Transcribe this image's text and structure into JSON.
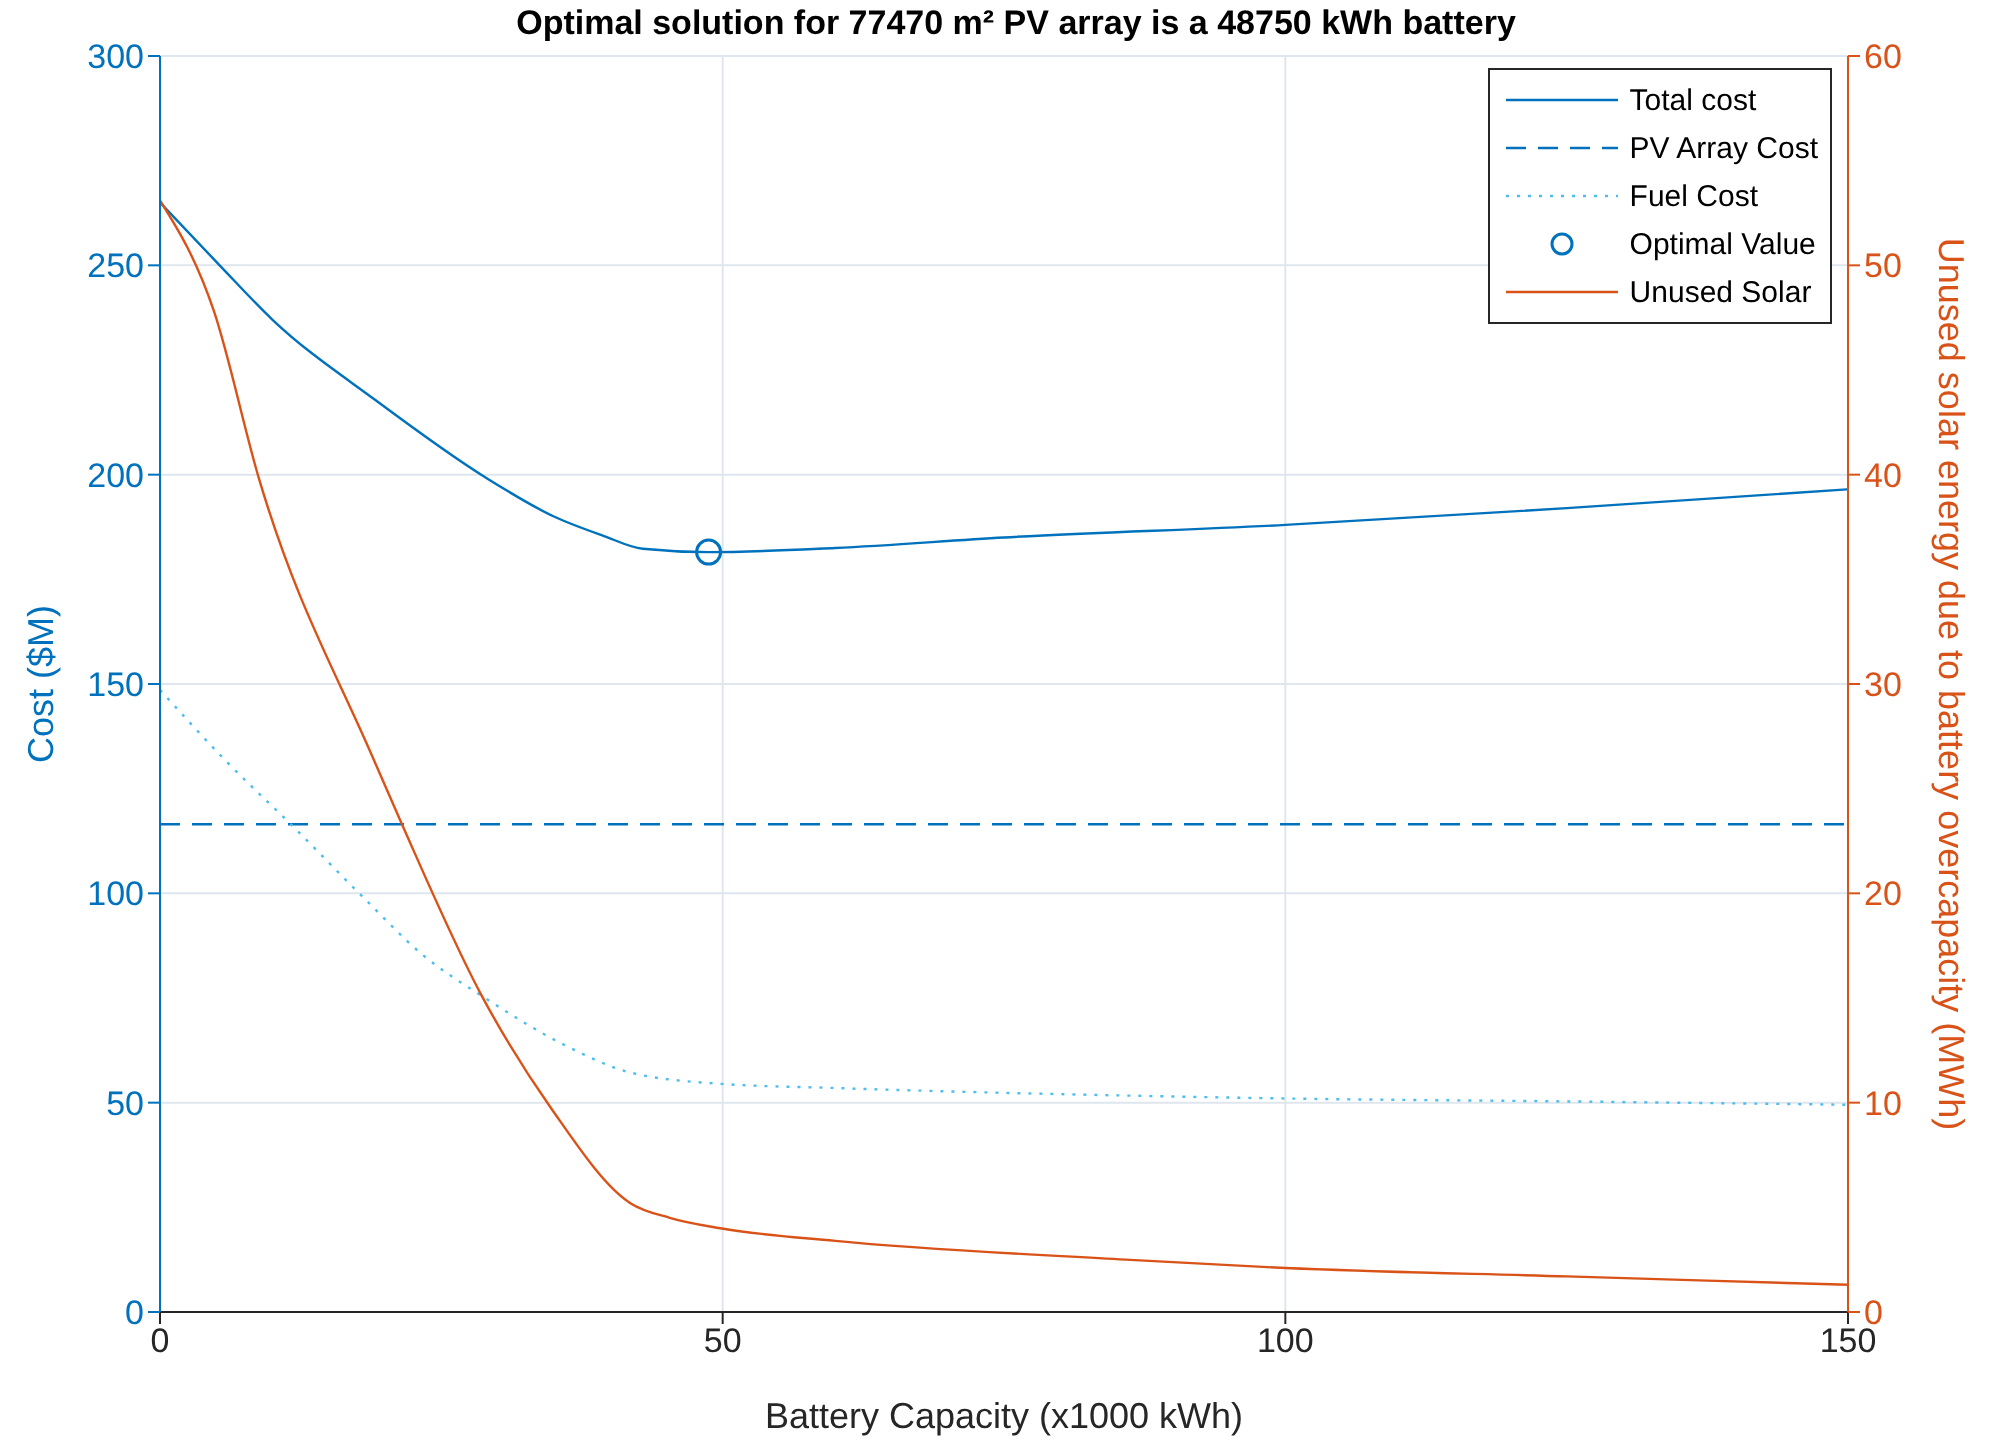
{
  "chart_data": {
    "type": "line",
    "title": "Optimal solution for 77470 m² PV array is a 48750 kWh battery",
    "xlabel": "Battery Capacity (x1000 kWh)",
    "ylabel": "Cost ($M)",
    "y2label": "Unused solar energy due to battery overcapacity (MWh)",
    "xlim": [
      0,
      150
    ],
    "xticks": [
      0,
      50,
      100,
      150
    ],
    "ylim": [
      0,
      300
    ],
    "yticks": [
      0,
      50,
      100,
      150,
      200,
      250,
      300
    ],
    "y2lim": [
      0,
      60
    ],
    "y2ticks": [
      0,
      10,
      20,
      30,
      40,
      50,
      60
    ],
    "grid": true,
    "legend": "top right",
    "series": [
      {
        "name": "Total cost",
        "color": "#0072bd",
        "line_style": "solid",
        "x": [
          0,
          5.3,
          10,
          19.2,
          29,
          35,
          39.4,
          42.9,
          48.75,
          60,
          75,
          100,
          125,
          150
        ],
        "values": [
          265,
          250,
          237,
          217.7,
          199.2,
          190,
          185.4,
          182.3,
          181.5,
          182.5,
          185,
          188,
          192,
          196.5
        ]
      },
      {
        "name": "PV Array Cost",
        "color": "#0072bd",
        "line_style": "dashed",
        "x": [
          0,
          150
        ],
        "values": [
          116.5,
          116.5
        ]
      },
      {
        "name": "Fuel Cost",
        "color": "#4dbeee",
        "line_style": "dotted",
        "x": [
          0,
          5.9,
          11.7,
          18,
          23.3,
          29,
          36,
          41.8,
          49.8,
          60,
          85.8,
          100,
          125,
          150
        ],
        "values": [
          148.6,
          131.5,
          116.3,
          99.2,
          85.4,
          74.8,
          63.7,
          57.2,
          54.5,
          53.5,
          51.7,
          51,
          50.3,
          49.5
        ]
      },
      {
        "name": "Optimal Value",
        "type": "scatter",
        "marker": "circle",
        "color": "#0072bd",
        "x": [
          48.75
        ],
        "values": [
          181.5
        ]
      },
      {
        "name": "Unused Solar",
        "axis": "y2",
        "color": "#d95319",
        "line_style": "solid",
        "x": [
          0,
          4.8,
          8.8,
          18.9,
          21.5,
          28.5,
          34.8,
          41.8,
          45.3,
          49.8,
          60,
          85.8,
          100,
          125,
          150
        ],
        "values": [
          53.1,
          47.8,
          39.8,
          26.5,
          23.3,
          15.2,
          9.7,
          5.2,
          4.5,
          4,
          3.4,
          2.5,
          2.1,
          1.7,
          1.3
        ]
      }
    ]
  }
}
